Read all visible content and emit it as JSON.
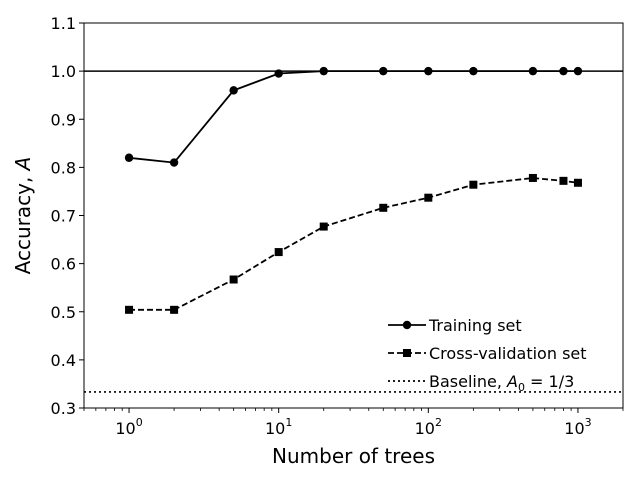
{
  "chart_data": {
    "type": "line",
    "xscale": "log",
    "xlabel": "Number of trees",
    "ylabel": "Accuracy, A",
    "xlim": [
      0.5,
      2000
    ],
    "ylim": [
      0.3,
      1.1
    ],
    "x_ticks": [
      1,
      10,
      100,
      1000
    ],
    "x_tick_labels": [
      {
        "base": "10",
        "exp": "0"
      },
      {
        "base": "10",
        "exp": "1"
      },
      {
        "base": "10",
        "exp": "2"
      },
      {
        "base": "10",
        "exp": "3"
      }
    ],
    "y_ticks": [
      "0.3",
      "0.4",
      "0.5",
      "0.6",
      "0.7",
      "0.8",
      "0.9",
      "1.0",
      "1.1"
    ],
    "x": [
      1,
      2,
      5,
      10,
      20,
      50,
      100,
      200,
      500,
      800,
      1000
    ],
    "series": [
      {
        "name": "Training set",
        "style": "solid",
        "marker": "circle",
        "values": [
          0.82,
          0.81,
          0.96,
          0.995,
          1.0,
          1.0,
          1.0,
          1.0,
          1.0,
          1.0,
          1.0
        ]
      },
      {
        "name": "Cross-validation set",
        "style": "dashed",
        "marker": "square",
        "values": [
          0.504,
          0.504,
          0.567,
          0.624,
          0.677,
          0.716,
          0.737,
          0.764,
          0.778,
          0.772,
          0.768
        ]
      }
    ],
    "reference_lines": [
      {
        "y": 1.0,
        "style": "solid"
      },
      {
        "y": 0.3333,
        "style": "dotted",
        "legend": "Baseline, A0 = 1/3"
      }
    ],
    "legend_placement": "lower-right",
    "legend": [
      {
        "label": "Training set",
        "style": "solid",
        "marker": "circle"
      },
      {
        "label": "Cross-validation set",
        "style": "dashed",
        "marker": "square"
      },
      {
        "label_prefix": "Baseline, ",
        "label_symbol": "A",
        "label_sub": "0",
        "label_suffix": " = 1/3",
        "style": "dotted"
      }
    ],
    "grid": false,
    "color": "#000000"
  }
}
